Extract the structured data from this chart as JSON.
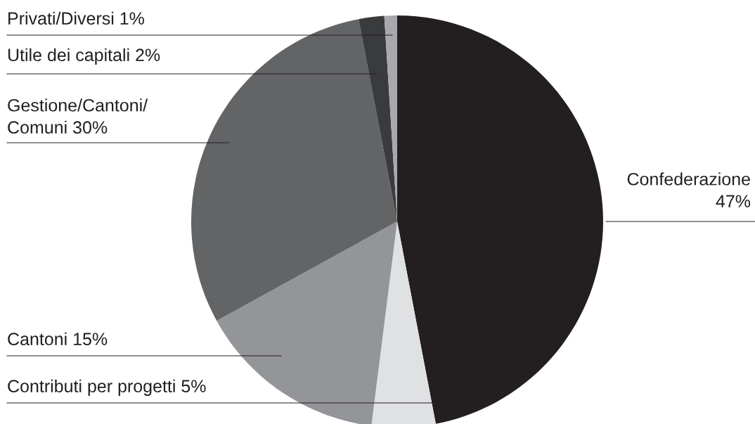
{
  "chart_data": {
    "type": "pie",
    "categories": [
      "Confederazione",
      "Contributi per progetti",
      "Cantoni",
      "Gestione/Cantoni/\nComuni",
      "Utile dei capitali",
      "Privati/Diversi"
    ],
    "values": [
      47,
      5,
      15,
      30,
      2,
      1
    ],
    "value_labels": [
      "47%",
      "5%",
      "15%",
      "30%",
      "2%",
      "1%"
    ],
    "colors": [
      "#231f20",
      "#e0e1e3",
      "#939598",
      "#636466",
      "#3a3b3d",
      "#a7a9ac"
    ],
    "legend": false
  }
}
